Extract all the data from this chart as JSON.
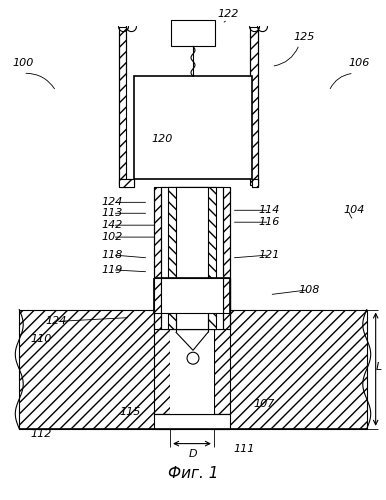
{
  "background_color": "#ffffff",
  "fig_title": "Фиг. 1",
  "lw": 0.8,
  "lw2": 1.2
}
